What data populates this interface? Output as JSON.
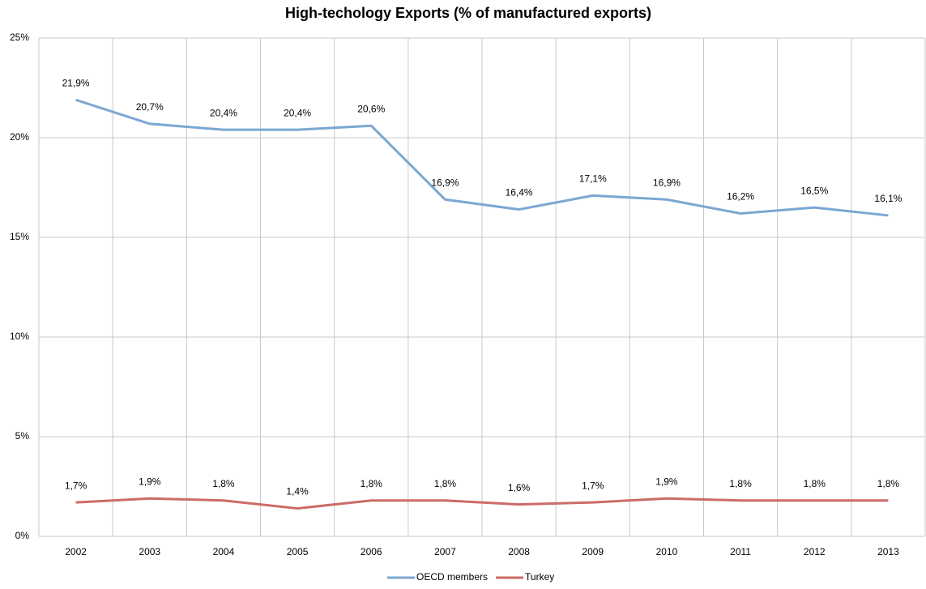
{
  "chart_data": {
    "type": "line",
    "title": "High-techology Exports (% of manufactured exports)",
    "categories": [
      "2002",
      "2003",
      "2004",
      "2005",
      "2006",
      "2007",
      "2008",
      "2009",
      "2010",
      "2011",
      "2012",
      "2013"
    ],
    "series": [
      {
        "name": "OECD members",
        "color": "#7ba7d3",
        "values": [
          21.9,
          20.7,
          20.4,
          20.4,
          20.6,
          16.9,
          16.4,
          17.1,
          16.9,
          16.2,
          16.5,
          16.1
        ],
        "value_labels": [
          "21,9%",
          "20,7%",
          "20,4%",
          "20,4%",
          "20,6%",
          "16,9%",
          "16,4%",
          "17,1%",
          "16,9%",
          "16,2%",
          "16,5%",
          "16,1%"
        ]
      },
      {
        "name": "Turkey",
        "color": "#cd6b66",
        "values": [
          1.7,
          1.9,
          1.8,
          1.4,
          1.8,
          1.8,
          1.6,
          1.7,
          1.9,
          1.8,
          1.8,
          1.8
        ],
        "value_labels": [
          "1,7%",
          "1,9%",
          "1,8%",
          "1,4%",
          "1,8%",
          "1,8%",
          "1,6%",
          "1,7%",
          "1,9%",
          "1,8%",
          "1,8%",
          "1,8%"
        ]
      }
    ],
    "ylim": [
      0,
      25
    ],
    "yticks": [
      {
        "value": 0,
        "label": "0%"
      },
      {
        "value": 5,
        "label": "5%"
      },
      {
        "value": 10,
        "label": "10%"
      },
      {
        "value": 15,
        "label": "15%"
      },
      {
        "value": 20,
        "label": "20%"
      },
      {
        "value": 25,
        "label": "25%"
      }
    ],
    "grid": true,
    "legend": "bottom"
  }
}
